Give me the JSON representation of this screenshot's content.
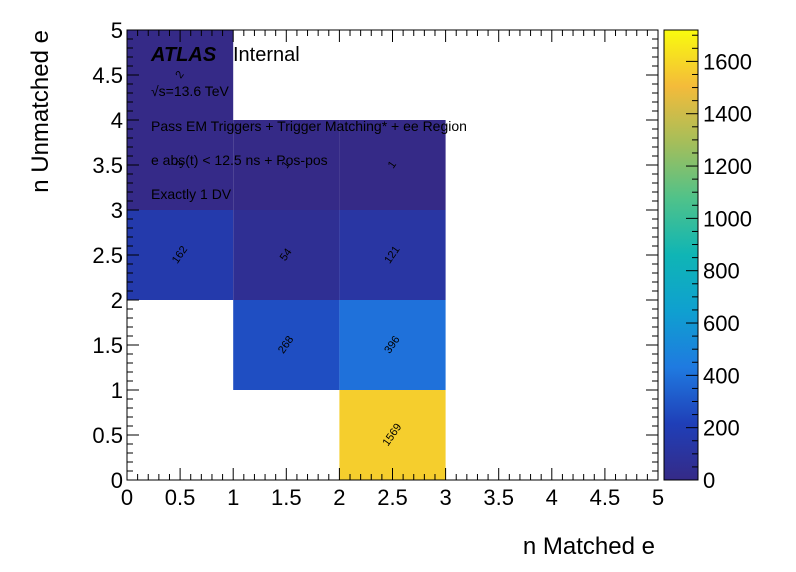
{
  "chart_data": {
    "type": "heatmap",
    "xlabel": "n Matched e",
    "ylabel": "n Unmatched e",
    "xlim": [
      0,
      5
    ],
    "ylim": [
      0,
      5
    ],
    "x_ticks": [
      "0",
      "0.5",
      "1",
      "1.5",
      "2",
      "2.5",
      "3",
      "3.5",
      "4",
      "4.5",
      "5"
    ],
    "y_ticks": [
      "0",
      "0.5",
      "1",
      "1.5",
      "2",
      "2.5",
      "3",
      "3.5",
      "4",
      "4.5",
      "5"
    ],
    "colorbar": {
      "min": 0,
      "max": 1720,
      "ticks": [
        "0",
        "200",
        "400",
        "600",
        "800",
        "1000",
        "1200",
        "1400",
        "1600"
      ],
      "palette": "viridis"
    },
    "cells": [
      {
        "x": [
          0,
          1
        ],
        "y": [
          4,
          5
        ],
        "value": 2
      },
      {
        "x": [
          0,
          1
        ],
        "y": [
          3,
          4
        ],
        "value": 3
      },
      {
        "x": [
          1,
          2
        ],
        "y": [
          3,
          4
        ],
        "value": 1
      },
      {
        "x": [
          2,
          3
        ],
        "y": [
          3,
          4
        ],
        "value": 1
      },
      {
        "x": [
          0,
          1
        ],
        "y": [
          2,
          3
        ],
        "value": 162
      },
      {
        "x": [
          1,
          2
        ],
        "y": [
          2,
          3
        ],
        "value": 54
      },
      {
        "x": [
          2,
          3
        ],
        "y": [
          2,
          3
        ],
        "value": 121
      },
      {
        "x": [
          1,
          2
        ],
        "y": [
          1,
          2
        ],
        "value": 268
      },
      {
        "x": [
          2,
          3
        ],
        "y": [
          1,
          2
        ],
        "value": 396
      },
      {
        "x": [
          2,
          3
        ],
        "y": [
          0,
          1
        ],
        "value": 1569
      }
    ],
    "annotations": {
      "atlas": "ATLAS",
      "internal": "Internal",
      "energy": "√s=13.6 TeV",
      "line1": "Pass EM Triggers + Trigger Matching* + ee Region",
      "line2": "e abs(t) < 12.5 ns + Pos-pos",
      "line3": "Exactly 1 DV"
    }
  }
}
